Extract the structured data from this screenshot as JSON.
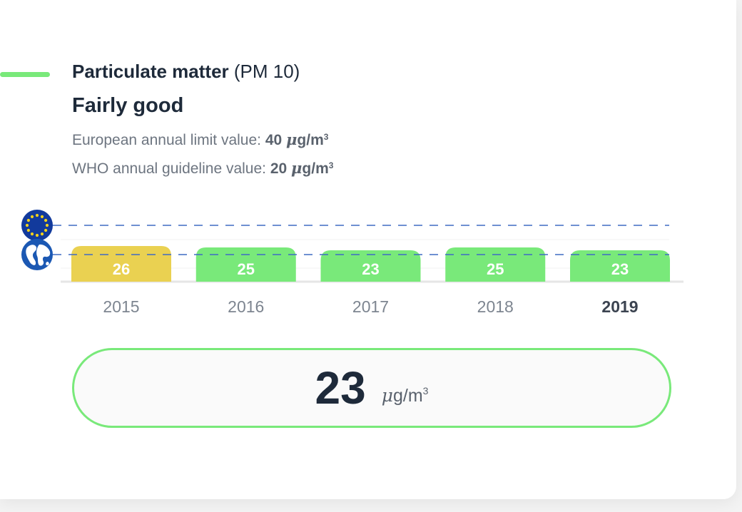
{
  "header": {
    "title_bold": "Particulate matter",
    "title_rest": " (PM 10)",
    "status": "Fairly good",
    "eu_limit_label": "European annual limit value: ",
    "eu_limit_value": "40",
    "who_limit_label": "WHO annual guideline value: ",
    "who_limit_value": "20",
    "unit_mu": "μ",
    "unit_base": "g/m",
    "unit_exp": "3"
  },
  "icons": {
    "eu": "eu-flag-icon",
    "who": "globe-icon"
  },
  "colors": {
    "good": "#79e97a",
    "moderate": "#ead151",
    "threshold_line": "#3f6bc4",
    "text_dark": "#1e2a3a",
    "text_muted": "#6d7580"
  },
  "chart_data": {
    "type": "bar",
    "categories": [
      "2015",
      "2016",
      "2017",
      "2018",
      "2019"
    ],
    "values": [
      26,
      25,
      23,
      25,
      23
    ],
    "bar_colors": [
      "#ead151",
      "#79e97a",
      "#79e97a",
      "#79e97a",
      "#79e97a"
    ],
    "highlight_category": "2019",
    "reference_lines": [
      {
        "label": "European annual limit value",
        "value": 40,
        "icon": "eu-flag-icon"
      },
      {
        "label": "WHO annual guideline value",
        "value": 20,
        "icon": "globe-icon"
      }
    ],
    "title": "",
    "xlabel": "",
    "ylabel": ""
  },
  "current": {
    "value": "23",
    "unit_mu": "μ",
    "unit_base": "g/m",
    "unit_exp": "3"
  }
}
